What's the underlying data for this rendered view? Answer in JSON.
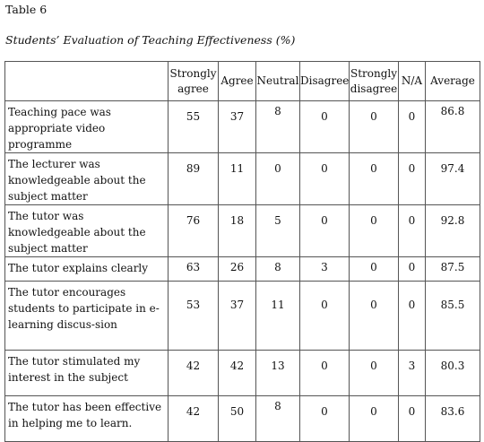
{
  "table_label": "Table 6",
  "caption": "Students’ Evaluation of Teaching Effectiveness (%)",
  "columns": [
    "",
    "Strongly agree",
    "Agree",
    "Neutral",
    "Disagree",
    "Strongly disagree",
    "N/A",
    "Average"
  ],
  "rows": [
    {
      "label": "Teaching pace was appropriate video programme",
      "values": [
        "55",
        "37",
        "8",
        "0",
        "0",
        "0",
        "86.8"
      ]
    },
    {
      "label": "The lecturer was knowledgeable about the subject matter",
      "values": [
        "89",
        "11",
        "0",
        "0",
        "0",
        "0",
        "97.4"
      ]
    },
    {
      "label": "The tutor was knowledgeable about the subject matter",
      "values": [
        "76",
        "18",
        "5",
        "0",
        "0",
        "0",
        "92.8"
      ]
    },
    {
      "label": "The tutor explains clearly",
      "values": [
        "63",
        "26",
        "8",
        "3",
        "0",
        "0",
        "87.5"
      ]
    },
    {
      "label": "The tutor encourages students to participate in e-learning discus-sion",
      "values": [
        "53",
        "37",
        "11",
        "0",
        "0",
        "0",
        "85.5"
      ]
    },
    {
      "label": "The tutor stimulated my interest in the subject",
      "values": [
        "42",
        "42",
        "13",
        "0",
        "0",
        "3",
        "80.3"
      ]
    },
    {
      "label": "The tutor has been effective in helping me to learn.",
      "values": [
        "42",
        "50",
        "8",
        "0",
        "0",
        "0",
        "83.6"
      ]
    }
  ]
}
